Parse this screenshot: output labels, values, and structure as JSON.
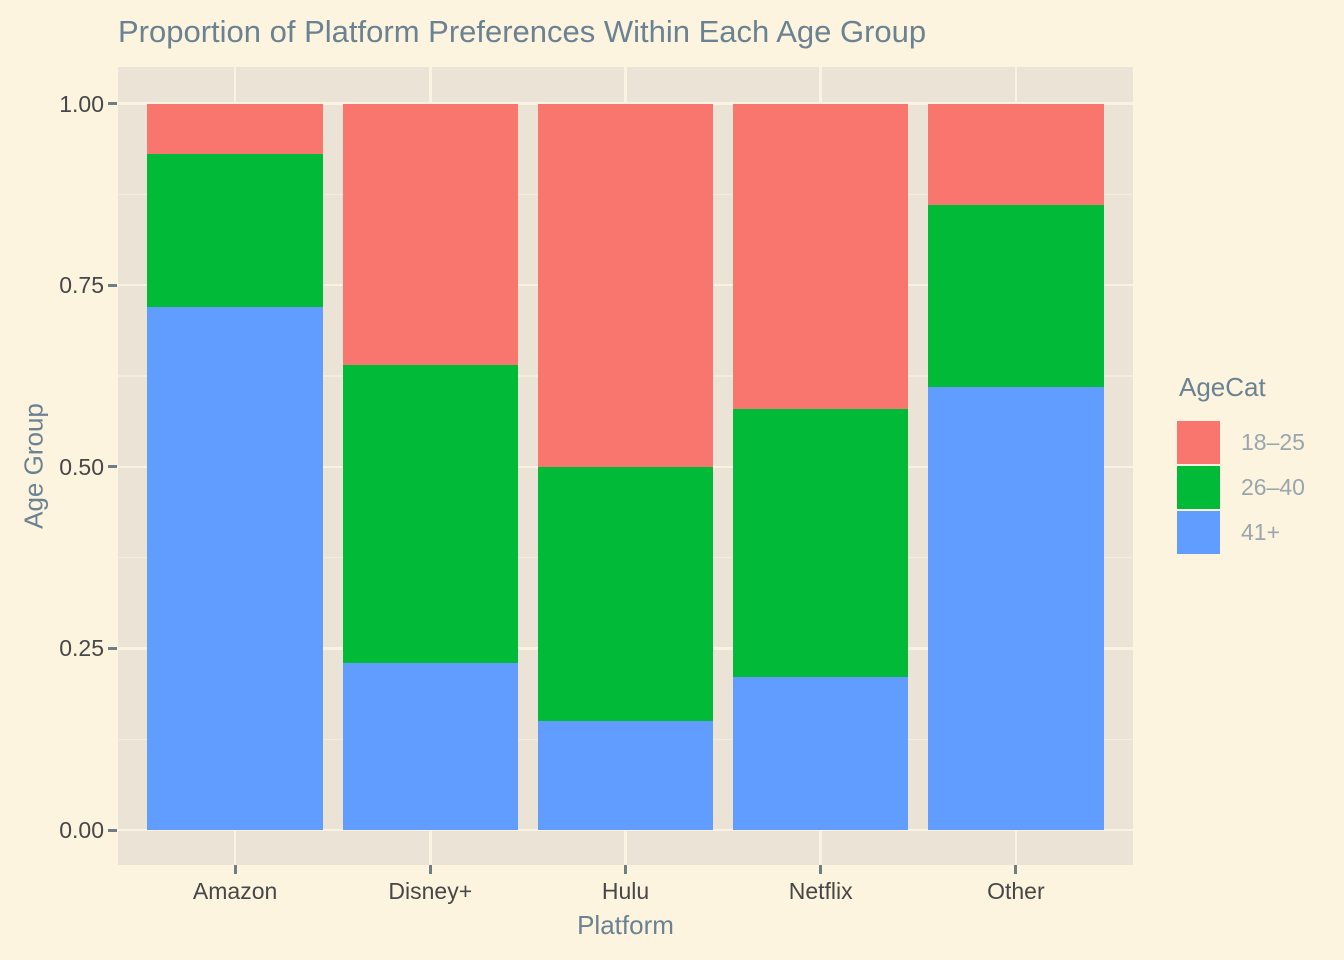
{
  "chart_data": {
    "type": "bar",
    "stacked": true,
    "proportional": true,
    "title": "Proportion of Platform Preferences Within Each Age Group",
    "xlabel": "Platform",
    "ylabel": "Age Group",
    "categories": [
      "Amazon",
      "Disney+",
      "Hulu",
      "Netflix",
      "Other"
    ],
    "series": [
      {
        "name": "18–25",
        "color": "#F8766D",
        "values": [
          0.07,
          0.36,
          0.5,
          0.42,
          0.14
        ]
      },
      {
        "name": "26–40",
        "color": "#00BA38",
        "values": [
          0.21,
          0.41,
          0.35,
          0.37,
          0.25
        ]
      },
      {
        "name": "41+",
        "color": "#619CFF",
        "values": [
          0.72,
          0.23,
          0.15,
          0.21,
          0.61
        ]
      }
    ],
    "stack_order_bottom_to_top": [
      "41+",
      "26–40",
      "18–25"
    ],
    "ylim": [
      0,
      1
    ],
    "yticks": [
      {
        "label": "0.00",
        "value": 0
      },
      {
        "label": "0.25",
        "value": 0.25
      },
      {
        "label": "0.50",
        "value": 0.5
      },
      {
        "label": "0.75",
        "value": 0.75
      },
      {
        "label": "1.00",
        "value": 1
      }
    ],
    "gridlines": {
      "major": [
        0,
        0.25,
        0.5,
        0.75,
        1
      ],
      "minor": [
        0.125,
        0.375,
        0.625,
        0.875
      ]
    },
    "legend": {
      "title": "AgeCat",
      "position": "right"
    },
    "grid": true
  },
  "colors": {
    "page_bg": "#FCF4DF",
    "panel_bg": "#EBE4D6",
    "grid_major": "#FAF3E2",
    "grid_minor": "#F3EDDD",
    "title_text": "#6B8292",
    "axis_title_text": "#6B8292",
    "tick_label_text": "#474747",
    "legend_label_text": "#9AA5AE",
    "tick_mark": "#6F7E85"
  }
}
